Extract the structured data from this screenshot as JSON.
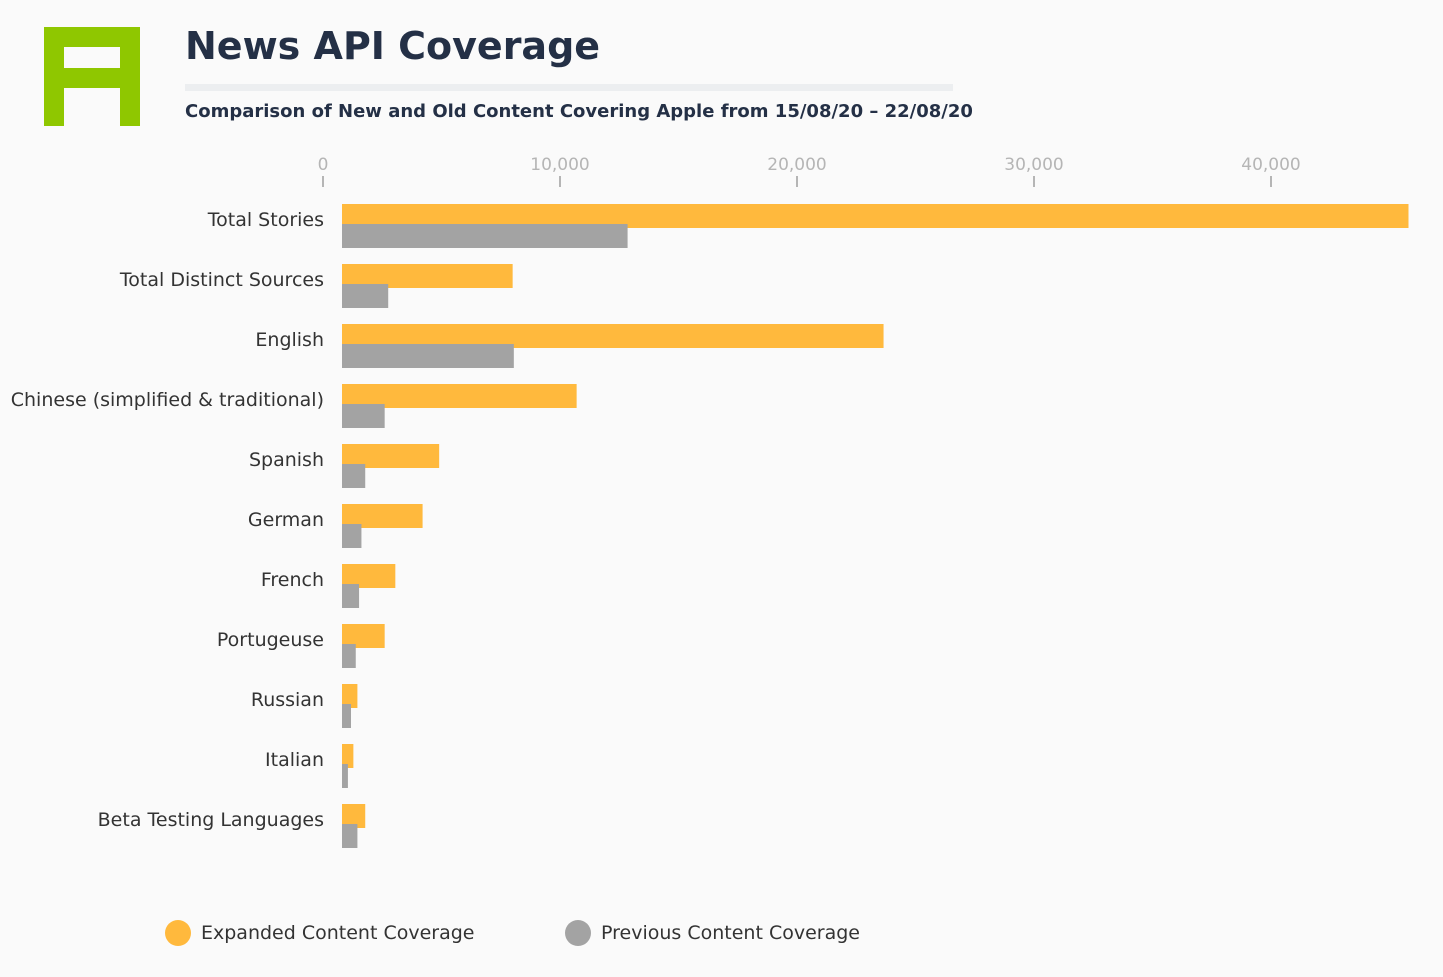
{
  "header": {
    "title": "News API Coverage",
    "subtitle": "Comparison of New and Old Content Covering Apple from 15/08/20 – 22/08/20"
  },
  "logo": {
    "icon": "aylien-logo-icon",
    "color": "#8fc700"
  },
  "colors": {
    "expanded": "#ffb93d",
    "previous": "#a3a3a3",
    "tick": "#b5b5b5",
    "label": "#333333"
  },
  "chart_data": {
    "type": "bar",
    "orientation": "horizontal",
    "title": "News API Coverage",
    "subtitle": "Comparison of New and Old Content Covering Apple from 15/08/20 – 22/08/20",
    "categories": [
      "Total Stories",
      "Total Distinct Sources",
      "English",
      "Chinese (simplified & traditional)",
      "Spanish",
      "German",
      "French",
      "Portugeuse",
      "Russian",
      "Italian",
      "Beta Testing Languages"
    ],
    "series": [
      {
        "name": "Expanded Content Coverage",
        "color": "#ffb93d",
        "values": [
          45000,
          7200,
          22850,
          9900,
          4100,
          3400,
          2250,
          1800,
          650,
          480,
          980
        ]
      },
      {
        "name": "Previous Content Coverage",
        "color": "#a3a3a3",
        "values": [
          12050,
          1950,
          7250,
          1800,
          980,
          820,
          720,
          580,
          380,
          250,
          650
        ]
      }
    ],
    "xticks": [
      0,
      10000,
      20000,
      30000,
      40000
    ],
    "xtick_labels": [
      "0",
      "10,000",
      "20,000",
      "30,000",
      "40,000"
    ],
    "xlim": [
      0,
      47000
    ],
    "xlabel": "",
    "ylabel": "",
    "grid": false,
    "legend_position": "bottom"
  }
}
